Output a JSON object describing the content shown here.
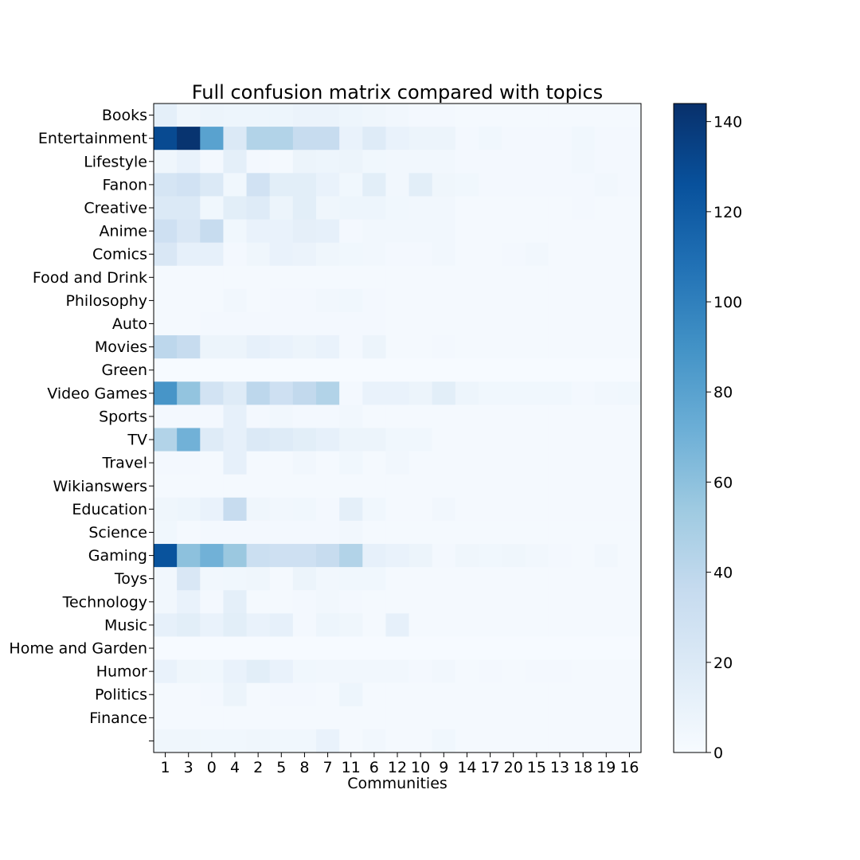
{
  "chart_data": {
    "type": "heatmap",
    "title": "Full confusion matrix compared with topics",
    "xlabel": "Communities",
    "ylabel": "",
    "x_categories": [
      "1",
      "3",
      "0",
      "4",
      "2",
      "5",
      "8",
      "7",
      "11",
      "6",
      "12",
      "10",
      "9",
      "14",
      "17",
      "20",
      "15",
      "13",
      "18",
      "19",
      "16"
    ],
    "y_categories": [
      "Books",
      "Entertainment",
      "Lifestyle",
      "Fanon",
      "Creative",
      "Anime",
      "Comics",
      "Food and Drink",
      "Philosophy",
      "Auto",
      "Movies",
      "Green",
      "Video Games",
      "Sports",
      "TV",
      "Travel",
      "Wikianswers",
      "Education",
      "Science",
      "Gaming",
      "Toys",
      "Technology",
      "Music",
      "Home and Garden",
      "Humor",
      "Politics",
      "Finance",
      ""
    ],
    "values": [
      [
        14,
        6,
        8,
        7,
        7,
        7,
        9,
        9,
        7,
        6,
        4,
        3,
        3,
        2,
        2,
        2,
        2,
        2,
        2,
        2,
        2
      ],
      [
        130,
        142,
        80,
        20,
        45,
        45,
        35,
        35,
        10,
        18,
        10,
        8,
        8,
        3,
        5,
        3,
        3,
        3,
        5,
        3,
        3
      ],
      [
        6,
        10,
        3,
        14,
        3,
        2,
        8,
        7,
        8,
        5,
        4,
        4,
        4,
        3,
        3,
        3,
        3,
        3,
        4,
        3,
        3
      ],
      [
        25,
        28,
        20,
        5,
        28,
        15,
        15,
        10,
        5,
        15,
        4,
        15,
        6,
        5,
        3,
        3,
        3,
        3,
        3,
        4,
        3
      ],
      [
        20,
        20,
        5,
        15,
        18,
        8,
        15,
        6,
        7,
        7,
        5,
        4,
        4,
        2,
        2,
        2,
        2,
        2,
        3,
        2,
        2
      ],
      [
        30,
        22,
        35,
        5,
        10,
        10,
        13,
        12,
        3,
        4,
        4,
        4,
        4,
        2,
        2,
        2,
        2,
        2,
        2,
        2,
        2
      ],
      [
        22,
        12,
        12,
        3,
        6,
        10,
        9,
        6,
        5,
        4,
        3,
        3,
        4,
        2,
        2,
        3,
        4,
        2,
        2,
        2,
        2
      ],
      [
        2,
        2,
        2,
        2,
        2,
        2,
        2,
        2,
        2,
        2,
        2,
        2,
        2,
        2,
        2,
        2,
        2,
        2,
        2,
        2,
        2
      ],
      [
        2,
        2,
        2,
        4,
        2,
        3,
        3,
        4,
        5,
        3,
        2,
        2,
        2,
        2,
        2,
        2,
        2,
        2,
        2,
        2,
        2
      ],
      [
        2,
        2,
        3,
        3,
        3,
        3,
        3,
        3,
        3,
        3,
        2,
        2,
        2,
        2,
        2,
        2,
        2,
        2,
        2,
        2,
        2
      ],
      [
        40,
        35,
        8,
        8,
        12,
        10,
        8,
        10,
        3,
        8,
        2,
        2,
        3,
        2,
        2,
        2,
        2,
        2,
        2,
        2,
        2
      ],
      [
        1,
        1,
        1,
        1,
        1,
        1,
        1,
        1,
        1,
        1,
        1,
        1,
        1,
        1,
        1,
        1,
        1,
        1,
        1,
        1,
        1
      ],
      [
        88,
        58,
        27,
        18,
        40,
        30,
        38,
        45,
        3,
        10,
        10,
        8,
        15,
        7,
        5,
        5,
        5,
        5,
        3,
        4,
        5
      ],
      [
        3,
        3,
        3,
        12,
        3,
        4,
        3,
        3,
        4,
        2,
        2,
        2,
        2,
        2,
        2,
        2,
        2,
        2,
        2,
        2,
        2
      ],
      [
        45,
        70,
        18,
        12,
        20,
        18,
        15,
        12,
        8,
        8,
        5,
        5,
        2,
        2,
        2,
        2,
        2,
        2,
        2,
        2,
        2
      ],
      [
        3,
        3,
        2,
        12,
        2,
        2,
        4,
        2,
        5,
        2,
        4,
        2,
        2,
        2,
        2,
        2,
        2,
        2,
        2,
        2,
        2
      ],
      [
        2,
        2,
        2,
        2,
        2,
        2,
        2,
        2,
        2,
        2,
        2,
        2,
        2,
        2,
        2,
        2,
        2,
        2,
        2,
        2,
        2
      ],
      [
        6,
        7,
        10,
        35,
        6,
        4,
        5,
        3,
        14,
        5,
        2,
        2,
        4,
        2,
        2,
        2,
        2,
        2,
        2,
        2,
        2
      ],
      [
        5,
        2,
        3,
        3,
        3,
        3,
        3,
        3,
        4,
        2,
        2,
        2,
        2,
        2,
        2,
        2,
        2,
        2,
        2,
        2,
        2
      ],
      [
        125,
        60,
        70,
        55,
        32,
        30,
        30,
        35,
        45,
        12,
        10,
        8,
        3,
        6,
        5,
        6,
        4,
        3,
        2,
        4,
        2
      ],
      [
        4,
        22,
        4,
        5,
        6,
        2,
        8,
        4,
        5,
        5,
        2,
        2,
        2,
        2,
        2,
        2,
        2,
        2,
        2,
        2,
        2
      ],
      [
        4,
        10,
        3,
        14,
        2,
        2,
        3,
        4,
        3,
        2,
        2,
        2,
        2,
        2,
        2,
        2,
        2,
        2,
        2,
        2,
        2
      ],
      [
        12,
        15,
        10,
        15,
        10,
        12,
        3,
        7,
        6,
        2,
        12,
        2,
        2,
        2,
        2,
        2,
        2,
        2,
        2,
        2,
        2
      ],
      [
        1,
        1,
        1,
        1,
        1,
        1,
        1,
        1,
        1,
        1,
        1,
        1,
        1,
        1,
        1,
        1,
        1,
        1,
        1,
        1,
        1
      ],
      [
        10,
        6,
        5,
        10,
        15,
        10,
        5,
        4,
        4,
        4,
        4,
        3,
        4,
        2,
        3,
        2,
        3,
        3,
        2,
        2,
        2
      ],
      [
        2,
        2,
        3,
        8,
        2,
        3,
        3,
        2,
        7,
        2,
        2,
        2,
        2,
        2,
        2,
        2,
        2,
        2,
        2,
        2,
        2
      ],
      [
        2,
        2,
        2,
        2,
        2,
        2,
        2,
        2,
        2,
        2,
        2,
        2,
        2,
        2,
        2,
        2,
        2,
        2,
        2,
        2,
        2
      ],
      [
        6,
        6,
        5,
        5,
        6,
        5,
        5,
        10,
        2,
        4,
        2,
        2,
        5,
        2,
        2,
        2,
        2,
        2,
        2,
        2,
        2
      ]
    ],
    "colormap": "Blues",
    "colorbar": {
      "min": 0,
      "max": 144,
      "ticks": [
        0,
        20,
        40,
        60,
        80,
        100,
        120,
        140
      ]
    },
    "grid": false
  }
}
